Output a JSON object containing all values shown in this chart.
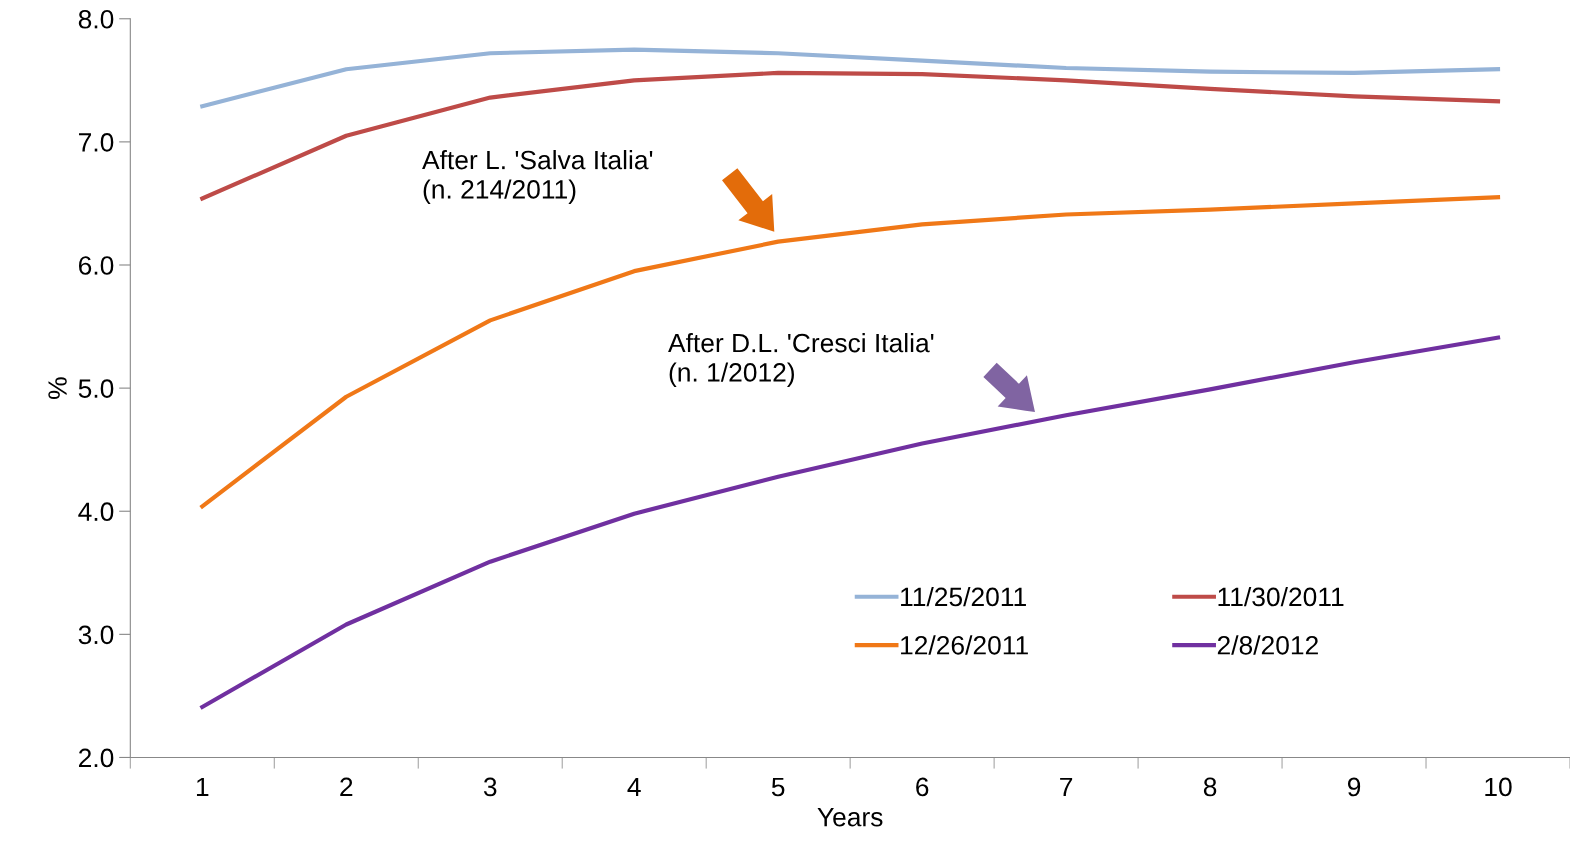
{
  "chart_data": {
    "type": "line",
    "xlabel": "Years",
    "ylabel": "%",
    "categories": [
      "1",
      "2",
      "3",
      "4",
      "5",
      "6",
      "7",
      "8",
      "9",
      "10"
    ],
    "series": [
      {
        "name": "11/25/2011",
        "color": "#95b3d7",
        "values": [
          7.29,
          7.59,
          7.72,
          7.75,
          7.72,
          7.66,
          7.6,
          7.57,
          7.56,
          7.59
        ]
      },
      {
        "name": "11/30/2011",
        "color": "#be4b48",
        "values": [
          6.54,
          7.05,
          7.36,
          7.5,
          7.56,
          7.55,
          7.5,
          7.43,
          7.37,
          7.33
        ]
      },
      {
        "name": "12/26/2011",
        "color": "#f07817",
        "values": [
          4.04,
          4.93,
          5.55,
          5.95,
          6.19,
          6.33,
          6.41,
          6.45,
          6.5,
          6.55
        ]
      },
      {
        "name": "2/8/2012",
        "color": "#7030a0",
        "values": [
          2.41,
          3.08,
          3.59,
          3.98,
          4.28,
          4.55,
          4.78,
          4.99,
          5.21,
          5.41
        ]
      }
    ],
    "annotations": [
      "After L. 'Salva Italia'\n(n. 214/2011)",
      "After D.L. 'Cresci Italia'\n(n. 1/2012)"
    ],
    "ylim": [
      2,
      8
    ],
    "yticks": [
      {
        "value": 2,
        "label": "2.0"
      },
      {
        "value": 3,
        "label": "3.0"
      },
      {
        "value": 4,
        "label": "4.0"
      },
      {
        "value": 5,
        "label": "5.0"
      },
      {
        "value": 6,
        "label": "6.0"
      },
      {
        "value": 7,
        "label": "7.0"
      },
      {
        "value": 8,
        "label": "8.0"
      }
    ],
    "grid": false,
    "legend": "bottom right",
    "marker": "none",
    "line_style": "solid"
  }
}
